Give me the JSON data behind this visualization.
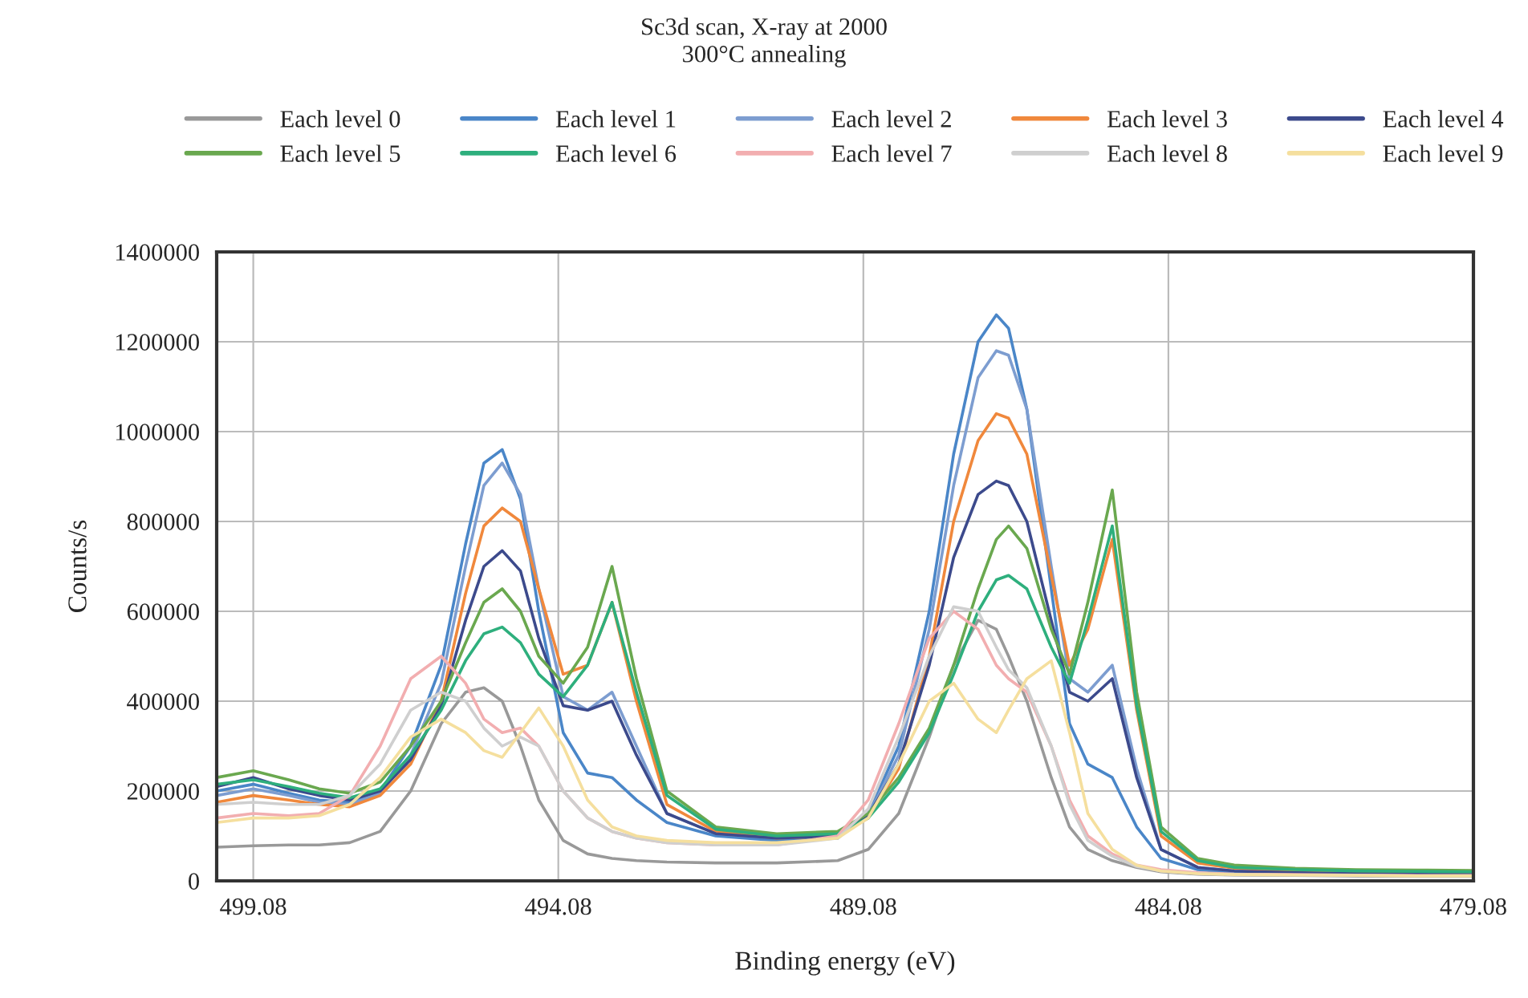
{
  "chart_data": {
    "type": "line",
    "title": "Sc3d scan, X-ray at 2000",
    "subtitle": "300°C annealing",
    "xlabel": "Binding energy (eV)",
    "ylabel": "Counts/s",
    "x": [
      499.68,
      499.08,
      498.5,
      498,
      497.5,
      497,
      496.5,
      496,
      495.6,
      495.3,
      495.0,
      494.7,
      494.4,
      494.0,
      493.6,
      493.2,
      492.8,
      492.3,
      491.5,
      490.5,
      489.5,
      489,
      488.5,
      488,
      487.6,
      487.2,
      486.9,
      486.7,
      486.4,
      486.0,
      485.7,
      485.4,
      485.0,
      484.6,
      484.2,
      483.6,
      483,
      482,
      481,
      480,
      479.08
    ],
    "xlim": [
      499.68,
      479.08
    ],
    "xticks": [
      499.08,
      494.08,
      489.08,
      484.08,
      479.08
    ],
    "ylim": [
      0,
      1400000
    ],
    "yticks": [
      0,
      200000,
      400000,
      600000,
      800000,
      1000000,
      1200000,
      1400000
    ],
    "grid": true,
    "legend": "top",
    "marker": "none",
    "line_style": "solid",
    "series": [
      {
        "name": "Each level 0",
        "color": "#999999",
        "values": [
          75000,
          78000,
          80000,
          80000,
          85000,
          110000,
          200000,
          350000,
          420000,
          430000,
          400000,
          300000,
          180000,
          90000,
          60000,
          50000,
          45000,
          42000,
          40000,
          40000,
          45000,
          70000,
          150000,
          320000,
          480000,
          580000,
          560000,
          500000,
          400000,
          230000,
          120000,
          70000,
          45000,
          30000,
          20000,
          15000,
          13000,
          12000,
          11000,
          10000,
          10000
        ]
      },
      {
        "name": "Each level 1",
        "color": "#4a86c8",
        "values": [
          200000,
          215000,
          195000,
          180000,
          175000,
          200000,
          300000,
          480000,
          750000,
          930000,
          960000,
          850000,
          600000,
          330000,
          240000,
          230000,
          180000,
          130000,
          100000,
          90000,
          95000,
          150000,
          300000,
          600000,
          950000,
          1200000,
          1260000,
          1230000,
          1050000,
          650000,
          350000,
          260000,
          230000,
          120000,
          50000,
          25000,
          18000,
          15000,
          null,
          null,
          null
        ]
      },
      {
        "name": "Each level 2",
        "color": "#7d9dd0",
        "values": [
          190000,
          205000,
          190000,
          175000,
          170000,
          195000,
          280000,
          440000,
          700000,
          880000,
          930000,
          860000,
          650000,
          410000,
          380000,
          420000,
          300000,
          150000,
          105000,
          95000,
          100000,
          145000,
          280000,
          560000,
          880000,
          1120000,
          1180000,
          1170000,
          1050000,
          700000,
          450000,
          420000,
          480000,
          250000,
          70000,
          30000,
          22000,
          18000,
          16000,
          15000,
          14000
        ]
      },
      {
        "name": "Each level 3",
        "color": "#f0883c",
        "values": [
          175000,
          190000,
          180000,
          170000,
          165000,
          190000,
          260000,
          400000,
          640000,
          790000,
          830000,
          800000,
          650000,
          460000,
          480000,
          620000,
          400000,
          170000,
          110000,
          95000,
          100000,
          140000,
          250000,
          500000,
          800000,
          980000,
          1040000,
          1030000,
          950000,
          680000,
          480000,
          560000,
          760000,
          380000,
          100000,
          40000,
          28000,
          22000,
          20000,
          19000,
          18000
        ]
      },
      {
        "name": "Each level 4",
        "color": "#3c4a8c",
        "values": [
          210000,
          230000,
          205000,
          190000,
          180000,
          200000,
          270000,
          390000,
          580000,
          700000,
          735000,
          690000,
          540000,
          390000,
          380000,
          400000,
          280000,
          150000,
          105000,
          95000,
          100000,
          145000,
          260000,
          480000,
          720000,
          860000,
          890000,
          880000,
          800000,
          580000,
          420000,
          400000,
          450000,
          230000,
          70000,
          30000,
          22000,
          18000,
          16000,
          15000,
          14000
        ]
      },
      {
        "name": "Each level 5",
        "color": "#6aa84f",
        "values": [
          230000,
          245000,
          225000,
          205000,
          195000,
          220000,
          300000,
          400000,
          530000,
          620000,
          650000,
          600000,
          500000,
          440000,
          520000,
          700000,
          450000,
          200000,
          120000,
          105000,
          110000,
          150000,
          230000,
          340000,
          480000,
          650000,
          760000,
          790000,
          740000,
          560000,
          460000,
          620000,
          870000,
          420000,
          120000,
          50000,
          35000,
          28000,
          25000,
          24000,
          23000
        ]
      },
      {
        "name": "Each level 6",
        "color": "#2eaf7d",
        "values": [
          215000,
          225000,
          210000,
          195000,
          185000,
          205000,
          280000,
          380000,
          490000,
          550000,
          565000,
          530000,
          460000,
          410000,
          480000,
          620000,
          420000,
          190000,
          115000,
          100000,
          105000,
          140000,
          220000,
          330000,
          460000,
          600000,
          670000,
          680000,
          650000,
          520000,
          440000,
          580000,
          790000,
          390000,
          110000,
          45000,
          30000,
          25000,
          22000,
          21000,
          20000
        ]
      },
      {
        "name": "Each level 7",
        "color": "#f2aeb0",
        "values": [
          140000,
          150000,
          145000,
          150000,
          190000,
          300000,
          450000,
          500000,
          440000,
          360000,
          330000,
          340000,
          300000,
          200000,
          140000,
          110000,
          95000,
          85000,
          80000,
          80000,
          100000,
          180000,
          350000,
          540000,
          600000,
          560000,
          480000,
          450000,
          420000,
          300000,
          180000,
          100000,
          60000,
          35000,
          25000,
          18000,
          15000,
          14000,
          13000,
          12000,
          12000
        ]
      },
      {
        "name": "Each level 8",
        "color": "#cfcfcf",
        "values": [
          170000,
          175000,
          170000,
          170000,
          190000,
          260000,
          380000,
          420000,
          400000,
          340000,
          300000,
          320000,
          300000,
          200000,
          140000,
          110000,
          95000,
          85000,
          80000,
          80000,
          95000,
          160000,
          320000,
          500000,
          610000,
          600000,
          520000,
          470000,
          430000,
          300000,
          170000,
          90000,
          55000,
          32000,
          22000,
          16000,
          14000,
          13000,
          12000,
          11000,
          11000
        ]
      },
      {
        "name": "Each level 9",
        "color": "#f5df9e",
        "values": [
          130000,
          140000,
          140000,
          145000,
          170000,
          230000,
          320000,
          360000,
          330000,
          290000,
          275000,
          330000,
          385000,
          300000,
          180000,
          120000,
          100000,
          90000,
          85000,
          85000,
          95000,
          140000,
          260000,
          400000,
          440000,
          360000,
          330000,
          380000,
          450000,
          490000,
          330000,
          150000,
          70000,
          35000,
          22000,
          16000,
          14000,
          13000,
          12000,
          11000,
          11000
        ]
      }
    ]
  }
}
